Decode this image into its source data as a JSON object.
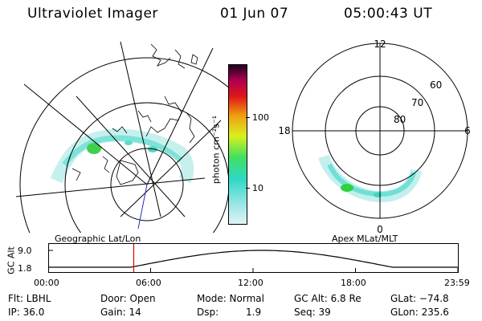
{
  "header": {
    "instrument": "Ultraviolet Imager",
    "date": "01 Jun 07",
    "time": "05:00:43 UT"
  },
  "geo_map": {
    "label": "Geographic Lat/Lon"
  },
  "apex_map": {
    "label": "Apex MLat/MLT",
    "mlt_labels": {
      "top": "12",
      "left": "18",
      "right": "6",
      "bottom": "0"
    },
    "lat_labels": [
      "60",
      "70",
      "80"
    ]
  },
  "colorbar": {
    "unit_label": "photon cm⁻²s⁻¹",
    "tick_labels": [
      "100",
      "10"
    ],
    "colors": [
      "#e0f4f4",
      "#30d8c8",
      "#40e060",
      "#d8f020",
      "#f0a010",
      "#e01818",
      "#b00050",
      "#200020"
    ]
  },
  "altitude_plot": {
    "ylabel": "GC Alt",
    "yticks": [
      "9.0",
      "1.8"
    ],
    "xticks": [
      "00:00",
      "06:00",
      "12:00",
      "18:00",
      "23:59"
    ],
    "marker_color": "#e00000",
    "marker_time_hours": 5.01
  },
  "info": {
    "flt": "Flt: LBHL",
    "door": "Door: Open",
    "mode": "Mode: Normal",
    "gc_alt": "GC Alt: 6.8 Re",
    "glat": "GLat: −74.8",
    "ip": "IP: 36.0",
    "gain": "Gain: 14",
    "dsp_label": "Dsp:",
    "dsp_value": "1.9",
    "seq": "Seq: 39",
    "glon": "GLon: 235.6"
  }
}
